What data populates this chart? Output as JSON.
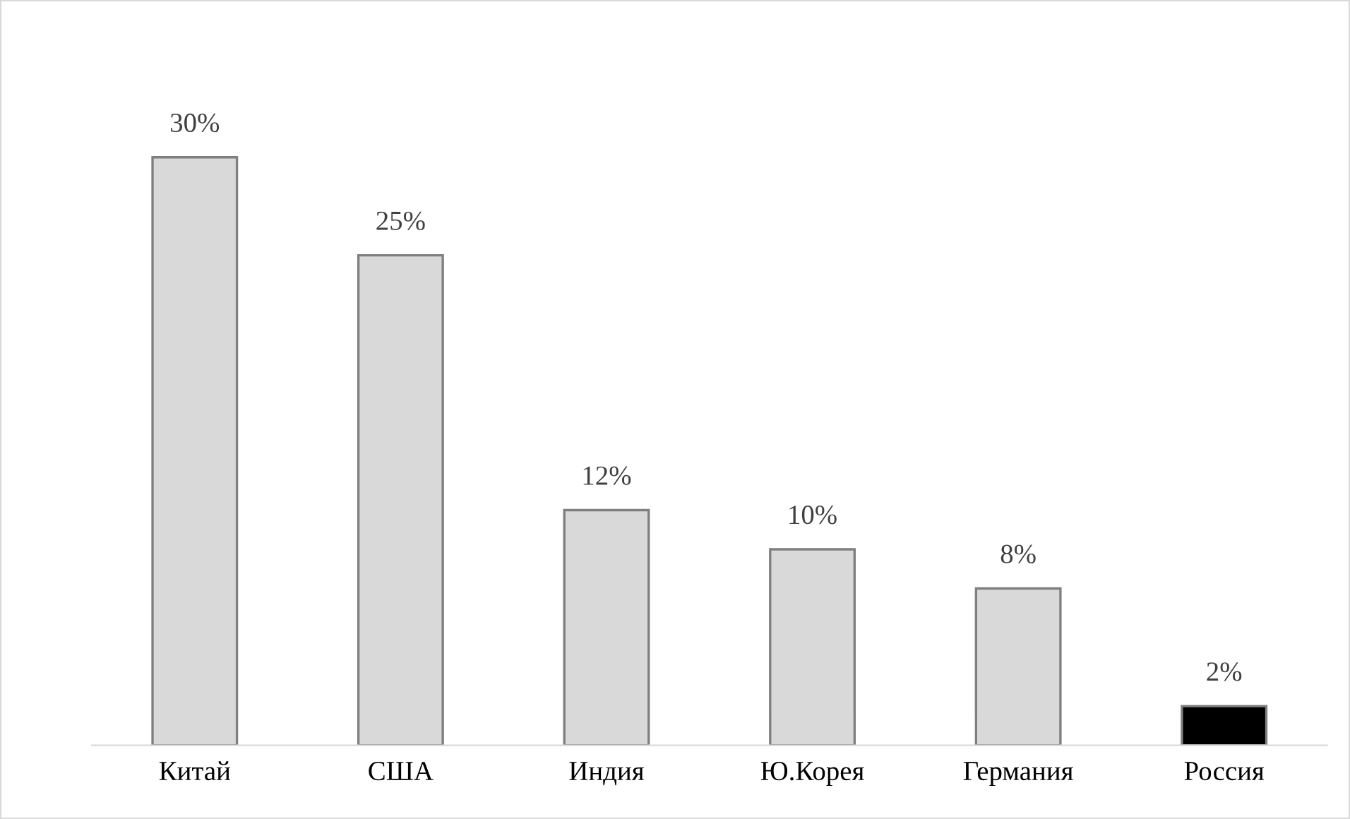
{
  "chart_data": {
    "type": "bar",
    "categories": [
      "Китай",
      "США",
      "Индия",
      "Ю.Корея",
      "Германия",
      "Россия"
    ],
    "values": [
      30,
      25,
      12,
      10,
      8,
      2
    ],
    "value_labels": [
      "30%",
      "25%",
      "12%",
      "10%",
      "8%",
      "2%"
    ],
    "colors": [
      "#d9d9d9",
      "#d9d9d9",
      "#d9d9d9",
      "#d9d9d9",
      "#d9d9d9",
      "#000000"
    ],
    "tick_labels": "x",
    "grid": false,
    "legend": false
  }
}
